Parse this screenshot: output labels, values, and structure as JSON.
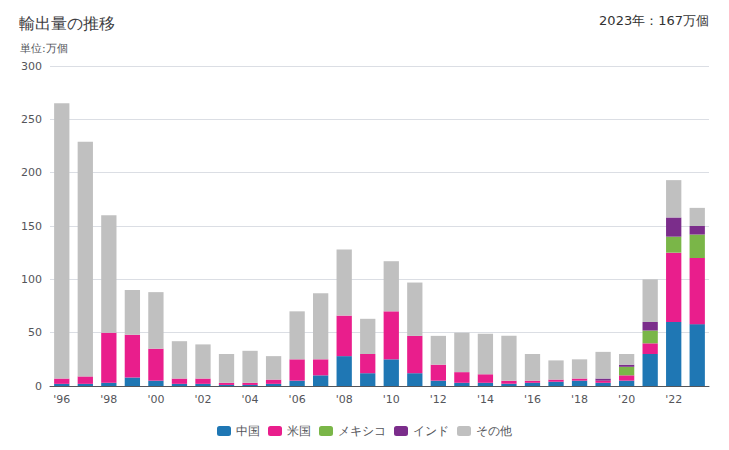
{
  "chart_data": {
    "type": "bar",
    "title": "輸出量の推移",
    "ylabel": "単位:万個",
    "annotation": "2023年：167万個",
    "categories": [
      "'96",
      null,
      "'98",
      null,
      "'00",
      null,
      "'02",
      null,
      "'04",
      null,
      "'06",
      null,
      "'08",
      null,
      "'10",
      null,
      "'12",
      null,
      "'14",
      null,
      "'16",
      null,
      "'18",
      null,
      "'20",
      null,
      "'22",
      null
    ],
    "series": [
      {
        "name": "中国",
        "color": "#1f77b4",
        "values": [
          2,
          2,
          3,
          8,
          5,
          2,
          2,
          1,
          1,
          2,
          5,
          10,
          28,
          12,
          25,
          12,
          5,
          3,
          3,
          2,
          3,
          4,
          5,
          3,
          5,
          30,
          60,
          58
        ]
      },
      {
        "name": "米国",
        "color": "#e91e8c",
        "values": [
          5,
          7,
          47,
          40,
          30,
          5,
          5,
          2,
          2,
          4,
          20,
          15,
          38,
          18,
          45,
          35,
          15,
          10,
          8,
          3,
          2,
          2,
          2,
          2,
          5,
          10,
          65,
          62
        ]
      },
      {
        "name": "メキシコ",
        "color": "#7ab648",
        "values": [
          0,
          0,
          0,
          0,
          0,
          0,
          0,
          0,
          0,
          0,
          0,
          0,
          0,
          0,
          0,
          0,
          0,
          0,
          0,
          0,
          0,
          0,
          0,
          0,
          8,
          12,
          15,
          22
        ]
      },
      {
        "name": "インド",
        "color": "#7b2d8b",
        "values": [
          0,
          0,
          0,
          0,
          0,
          0,
          0,
          0,
          0,
          0,
          0,
          0,
          0,
          0,
          0,
          0,
          0,
          0,
          0,
          0,
          0,
          0,
          0,
          2,
          2,
          8,
          18,
          8
        ]
      },
      {
        "name": "その他",
        "color": "#c0c0c0",
        "values": [
          258,
          220,
          110,
          42,
          53,
          35,
          32,
          27,
          30,
          22,
          45,
          62,
          62,
          33,
          47,
          50,
          27,
          37,
          38,
          42,
          25,
          18,
          18,
          25,
          10,
          40,
          35,
          17
        ]
      }
    ],
    "stacked": true,
    "ylim": [
      0,
      300
    ],
    "yticks": [
      0,
      50,
      100,
      150,
      200,
      250,
      300
    ],
    "grid": true,
    "legend": "bottom"
  }
}
